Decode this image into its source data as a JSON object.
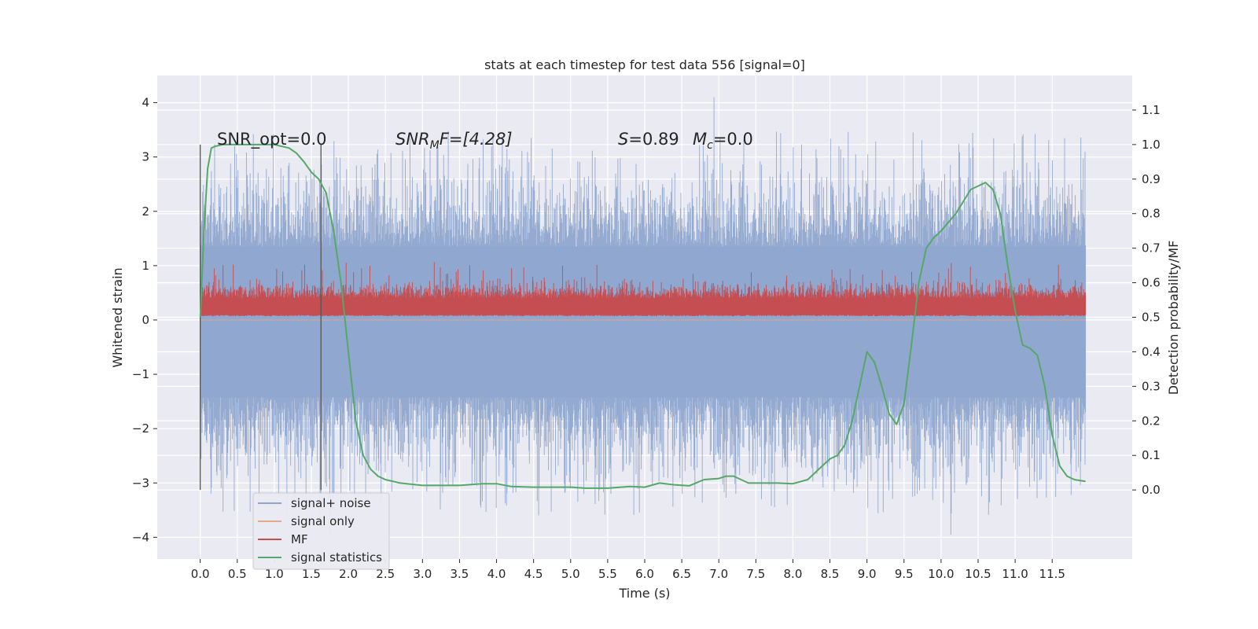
{
  "chart_data": {
    "type": "line",
    "title": "stats at each timestep for test data 556 [signal=0]",
    "xlabel": "Time (s)",
    "ylabel_left": "Whitened strain",
    "ylabel_right": "Detection probability/MF",
    "xlim": [
      -0.58,
      12.58
    ],
    "ylim_left": [
      -4.4,
      4.5
    ],
    "ylim_right": [
      -0.2,
      1.2
    ],
    "xticks": [
      "0.0",
      "0.5",
      "1.0",
      "1.5",
      "2.0",
      "2.5",
      "3.0",
      "3.5",
      "4.0",
      "4.5",
      "5.0",
      "5.5",
      "6.0",
      "6.5",
      "7.0",
      "7.5",
      "8.0",
      "8.5",
      "9.0",
      "9.5",
      "10.0",
      "10.5",
      "11.0",
      "11.5"
    ],
    "xtick_values": [
      0,
      0.5,
      1,
      1.5,
      2,
      2.5,
      3,
      3.5,
      4,
      4.5,
      5,
      5.5,
      6,
      6.5,
      7,
      7.5,
      8,
      8.5,
      9,
      9.5,
      10,
      10.5,
      11,
      11.5
    ],
    "yticks_left": [
      "4",
      "3",
      "2",
      "1",
      "0",
      "−1",
      "−2",
      "−3",
      "−4"
    ],
    "ytick_values_left": [
      4,
      3,
      2,
      1,
      0,
      -1,
      -2,
      -3,
      -4
    ],
    "yticks_right": [
      "1.1",
      "1.0",
      "0.9",
      "0.8",
      "0.7",
      "0.6",
      "0.5",
      "0.4",
      "0.3",
      "0.2",
      "0.1",
      "0.0"
    ],
    "ytick_values_right": [
      1.1,
      1.0,
      0.9,
      0.8,
      0.7,
      0.6,
      0.5,
      0.4,
      0.3,
      0.2,
      0.1,
      0.0
    ],
    "grid": true,
    "legend_position": "lower-left",
    "annotations": {
      "snr_opt": "SNR_opt=0.0",
      "snr_mf_base": "SNR",
      "snr_mf_sub": "M",
      "snr_mf_rest": "F=[4.28]",
      "s_name": "S",
      "s_value": "=0.89",
      "mc_base": "M",
      "mc_sub": "c",
      "mc_value": "=0.0"
    },
    "vertical_markers_x": [
      0.0,
      1.63
    ],
    "series": [
      {
        "name": "signal+ noise",
        "color": "#8fa6cf",
        "axis": "left",
        "x_range": [
          0,
          11.95
        ],
        "band_typical": [
          -1.9,
          1.8
        ],
        "band_extreme": [
          -3.95,
          4.1
        ]
      },
      {
        "name": "signal only",
        "color": "#e9a88a",
        "axis": "left",
        "values_constant": 0
      },
      {
        "name": "MF",
        "color": "#c44e52",
        "axis": "right",
        "x_range": [
          0,
          11.95
        ],
        "band_typical": [
          0.5,
          0.62
        ],
        "band_extreme": [
          0.5,
          0.66
        ]
      },
      {
        "name": "signal statistics",
        "color": "#55a868",
        "axis": "right",
        "x": [
          0,
          0.05,
          0.1,
          0.15,
          0.2,
          0.3,
          0.5,
          0.8,
          1.0,
          1.2,
          1.3,
          1.4,
          1.5,
          1.6,
          1.7,
          1.8,
          1.9,
          2.0,
          2.1,
          2.2,
          2.3,
          2.4,
          2.5,
          2.7,
          3.0,
          3.5,
          3.8,
          4.0,
          4.2,
          4.5,
          5.0,
          5.2,
          5.5,
          5.8,
          6.0,
          6.2,
          6.4,
          6.6,
          6.8,
          7.0,
          7.1,
          7.2,
          7.4,
          7.6,
          7.8,
          8.0,
          8.2,
          8.4,
          8.5,
          8.6,
          8.7,
          8.8,
          8.9,
          9.0,
          9.1,
          9.2,
          9.3,
          9.4,
          9.5,
          9.6,
          9.7,
          9.8,
          9.9,
          10.0,
          10.2,
          10.4,
          10.5,
          10.6,
          10.7,
          10.8,
          10.9,
          11.0,
          11.1,
          11.2,
          11.3,
          11.4,
          11.5,
          11.6,
          11.7,
          11.8,
          11.95
        ],
        "values": [
          0.5,
          0.75,
          0.93,
          0.99,
          0.995,
          1.0,
          1.0,
          1.0,
          1.0,
          0.99,
          0.975,
          0.95,
          0.92,
          0.9,
          0.86,
          0.75,
          0.6,
          0.4,
          0.2,
          0.1,
          0.06,
          0.04,
          0.03,
          0.02,
          0.013,
          0.013,
          0.018,
          0.018,
          0.01,
          0.008,
          0.008,
          0.005,
          0.005,
          0.01,
          0.008,
          0.02,
          0.015,
          0.012,
          0.03,
          0.033,
          0.04,
          0.04,
          0.02,
          0.02,
          0.02,
          0.018,
          0.03,
          0.07,
          0.09,
          0.1,
          0.13,
          0.2,
          0.3,
          0.4,
          0.37,
          0.3,
          0.22,
          0.19,
          0.25,
          0.42,
          0.6,
          0.7,
          0.73,
          0.75,
          0.8,
          0.87,
          0.88,
          0.89,
          0.87,
          0.8,
          0.65,
          0.52,
          0.42,
          0.41,
          0.39,
          0.3,
          0.16,
          0.07,
          0.04,
          0.03,
          0.025
        ]
      }
    ]
  }
}
